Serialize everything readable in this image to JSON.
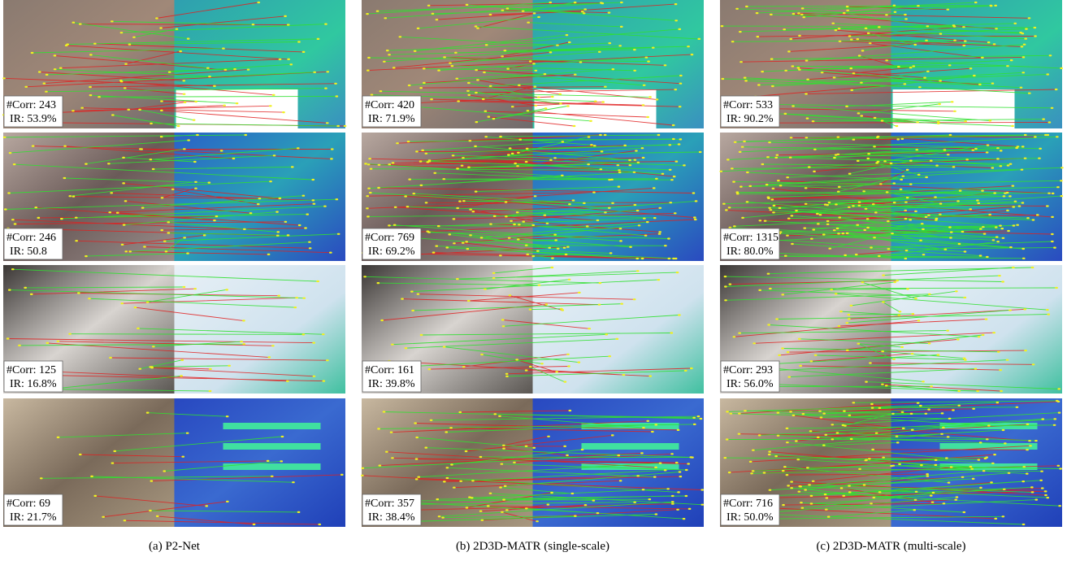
{
  "columns": [
    {
      "caption": "(a) P2-Net",
      "rows": [
        {
          "corr": "#Corr: 243",
          "ir": "IR: 53.9%"
        },
        {
          "corr": "#Corr: 246",
          "ir": "IR: 50.8"
        },
        {
          "corr": "#Corr: 125",
          "ir": "IR: 16.8%"
        },
        {
          "corr": "#Corr: 69",
          "ir": "IR: 21.7%"
        }
      ]
    },
    {
      "caption": "(b) 2D3D-MATR (single-scale)",
      "rows": [
        {
          "corr": "#Corr: 420",
          "ir": "IR: 71.9%"
        },
        {
          "corr": "#Corr: 769",
          "ir": "IR: 69.2%"
        },
        {
          "corr": "#Corr: 161",
          "ir": "IR: 39.8%"
        },
        {
          "corr": "#Corr: 357",
          "ir": "IR: 38.4%"
        }
      ]
    },
    {
      "caption": "(c) 2D3D-MATR (multi-scale)",
      "rows": [
        {
          "corr": "#Corr: 533",
          "ir": "IR: 90.2%"
        },
        {
          "corr": "#Corr: 1315",
          "ir": "IR: 80.0%"
        },
        {
          "corr": "#Corr: 293",
          "ir": "IR: 56.0%"
        },
        {
          "corr": "#Corr: 716",
          "ir": "IR: 50.0%"
        }
      ]
    }
  ]
}
